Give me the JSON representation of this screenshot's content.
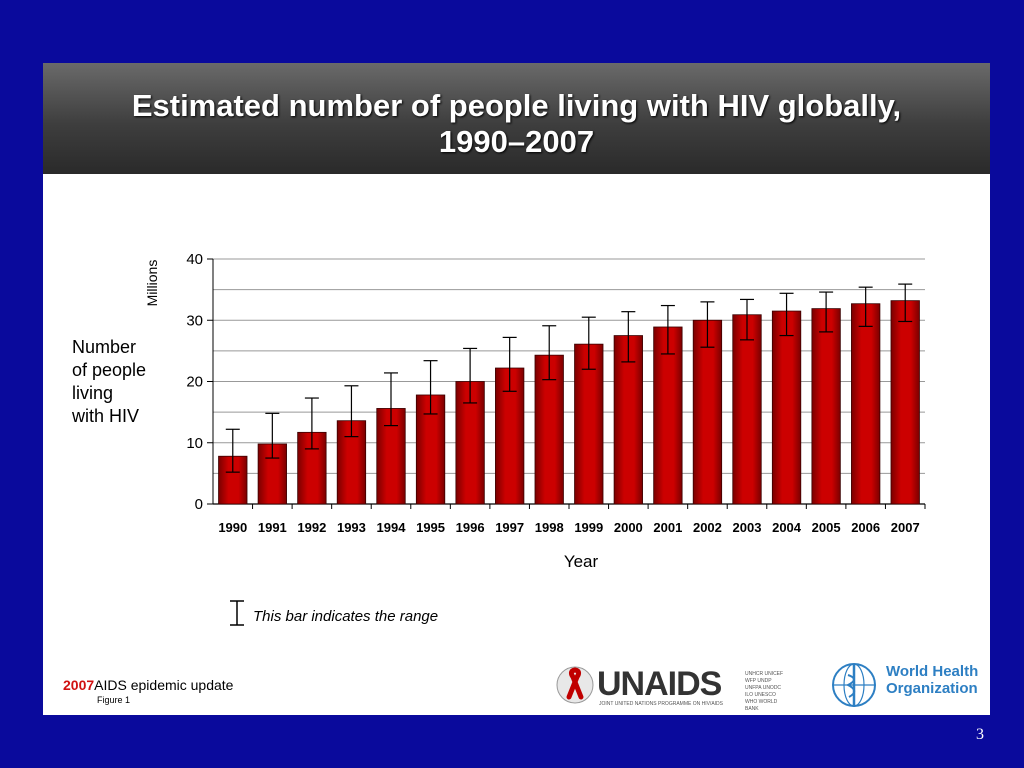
{
  "slide": {
    "title_line1": "Estimated number of people living with HIV globally,",
    "title_line2": "1990–2007",
    "side_label_lines": [
      "Number",
      "of people",
      "living",
      "with HIV"
    ],
    "range_note": "This bar indicates the range",
    "footer_year": "2007",
    "footer_text": "AIDS epidemic update",
    "footer_figure": "Figure 1",
    "unaids_name": "UNAIDS",
    "unaids_subtitle": "JOINT UNITED NATIONS PROGRAMME ON HIV/AIDS",
    "unaids_cosponsors": [
      "UNHCR",
      "UNICEF",
      "WFP",
      "UNDP",
      "UNFPA",
      "UNODC",
      "ILO",
      "UNESCO",
      "WHO",
      "WORLD BANK"
    ],
    "who_line1": "World Health",
    "who_line2": "Organization",
    "page_number": "3"
  },
  "colors": {
    "background": "#0a0a9c",
    "bar_fill": "#cc0000",
    "bar_dark": "#7a0000",
    "gridline": "#999999",
    "footer_year": "#d01010",
    "who_blue": "#2d7fc3"
  },
  "chart_data": {
    "type": "bar",
    "title": "",
    "xlabel": "Year",
    "ylabel": "Millions",
    "ylim": [
      0,
      40
    ],
    "yticks": [
      0,
      10,
      20,
      30,
      40
    ],
    "grid": true,
    "categories": [
      "1990",
      "1991",
      "1992",
      "1993",
      "1994",
      "1995",
      "1996",
      "1997",
      "1998",
      "1999",
      "2000",
      "2001",
      "2002",
      "2003",
      "2004",
      "2005",
      "2006",
      "2007"
    ],
    "values": [
      7.8,
      9.8,
      11.7,
      13.6,
      15.6,
      17.8,
      20.0,
      22.2,
      24.3,
      26.1,
      27.5,
      28.9,
      30.0,
      30.9,
      31.5,
      31.9,
      32.7,
      33.2
    ],
    "range_low": [
      5.2,
      7.5,
      9.0,
      11.0,
      12.8,
      14.7,
      16.5,
      18.4,
      20.3,
      22.0,
      23.2,
      24.5,
      25.6,
      26.8,
      27.5,
      28.1,
      29.0,
      29.8
    ],
    "range_high": [
      12.2,
      14.8,
      17.3,
      19.3,
      21.4,
      23.4,
      25.4,
      27.2,
      29.1,
      30.5,
      31.4,
      32.4,
      33.0,
      33.4,
      34.4,
      34.6,
      35.4,
      35.9
    ]
  }
}
